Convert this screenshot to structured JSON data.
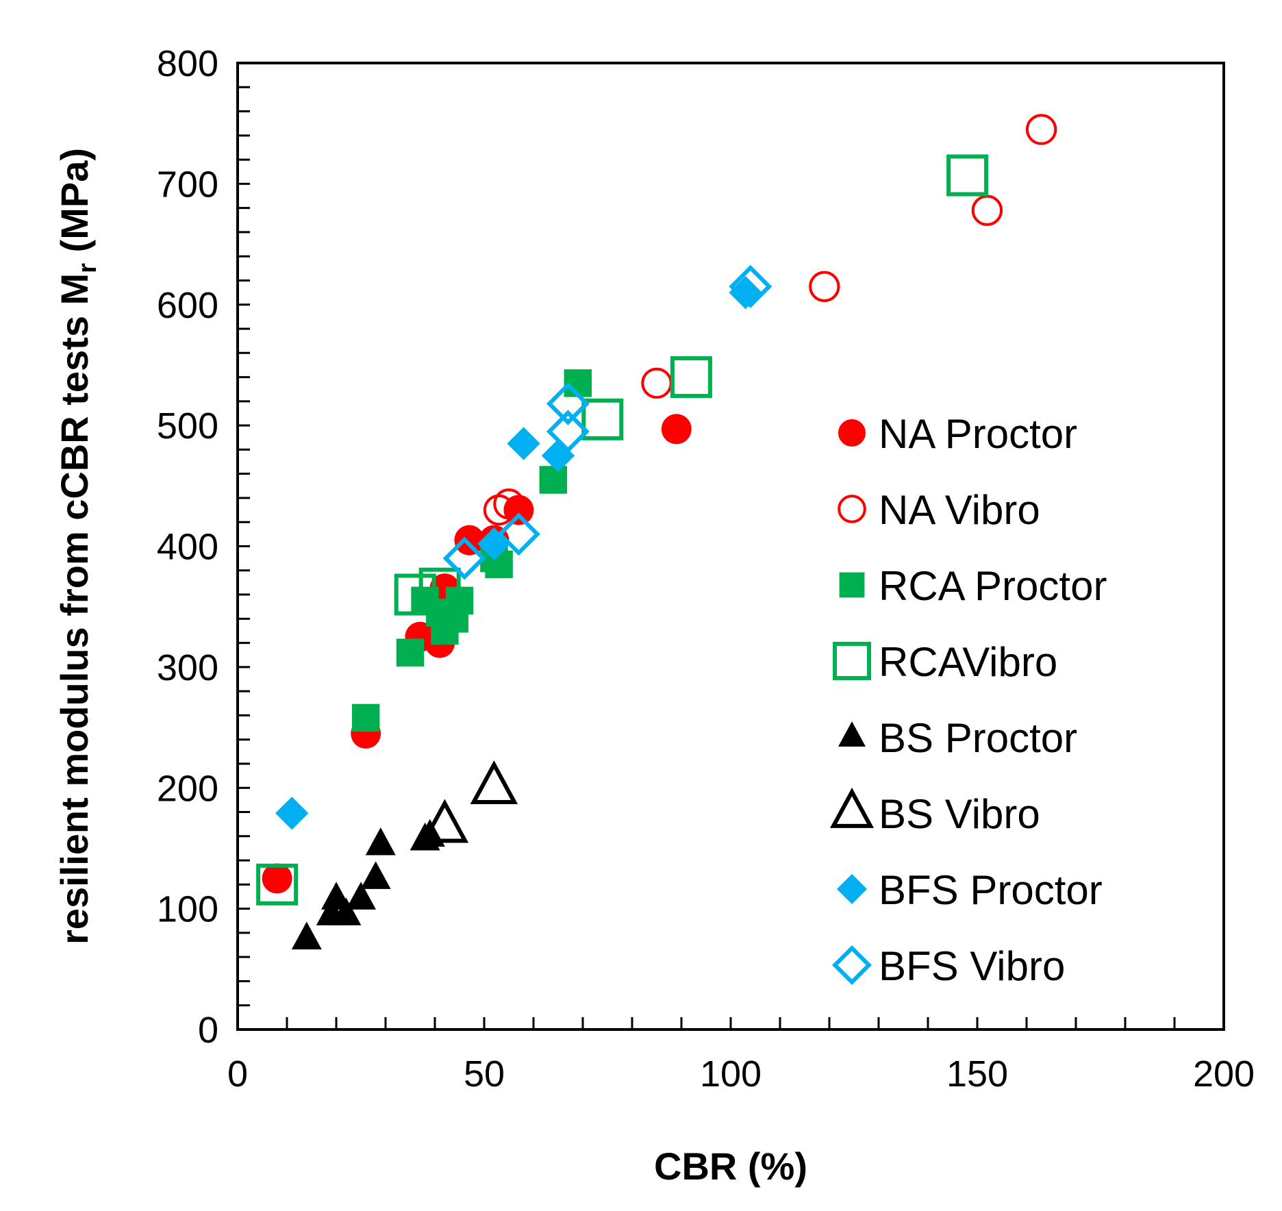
{
  "chart_data": {
    "type": "scatter",
    "title": "",
    "xlabel": "CBR (%)",
    "ylabel_main": "resilient modulus from cCBR tests M",
    "ylabel_sub": "r",
    "ylabel_unit": " (MPa)",
    "xlim": [
      0,
      200
    ],
    "ylim": [
      0,
      800
    ],
    "x_ticks": [
      0,
      50,
      100,
      150,
      200
    ],
    "y_ticks": [
      0,
      100,
      200,
      300,
      400,
      500,
      600,
      700,
      800
    ],
    "x_minor_step": 10,
    "y_minor_step": 20,
    "legend_position": "right",
    "series": [
      {
        "name": "NA Proctor",
        "marker": "circle",
        "filled": true,
        "color": "#ff0000",
        "points": [
          [
            8,
            125
          ],
          [
            26,
            245
          ],
          [
            37,
            325
          ],
          [
            41,
            320
          ],
          [
            42,
            365
          ],
          [
            47,
            405
          ],
          [
            52,
            405
          ],
          [
            57,
            430
          ],
          [
            89,
            497
          ]
        ]
      },
      {
        "name": "NA Vibro",
        "marker": "circle",
        "filled": false,
        "color": "#ff0000",
        "points": [
          [
            53,
            430
          ],
          [
            55,
            435
          ],
          [
            85,
            535
          ],
          [
            119,
            615
          ],
          [
            152,
            678
          ],
          [
            163,
            745
          ]
        ]
      },
      {
        "name": "RCA Proctor",
        "marker": "square",
        "filled": true,
        "color": "#00b050",
        "points": [
          [
            26,
            258
          ],
          [
            35,
            312
          ],
          [
            38,
            355
          ],
          [
            41,
            345
          ],
          [
            42,
            330
          ],
          [
            44,
            340
          ],
          [
            45,
            355
          ],
          [
            52,
            390
          ],
          [
            53,
            385
          ],
          [
            64,
            455
          ],
          [
            69,
            535
          ]
        ]
      },
      {
        "name": "RCAVibro",
        "marker": "square",
        "filled": false,
        "color": "#00b050",
        "points": [
          [
            8,
            120
          ],
          [
            36,
            360
          ],
          [
            41,
            365
          ],
          [
            74,
            505
          ],
          [
            92,
            540
          ],
          [
            148,
            707
          ]
        ]
      },
      {
        "name": "BS Proctor",
        "marker": "triangle",
        "filled": true,
        "color": "#000000",
        "points": [
          [
            14,
            75
          ],
          [
            19,
            95
          ],
          [
            20,
            108
          ],
          [
            22,
            95
          ],
          [
            25,
            108
          ],
          [
            28,
            125
          ],
          [
            29,
            153
          ],
          [
            38,
            157
          ],
          [
            39,
            160
          ]
        ]
      },
      {
        "name": "BS Vibro",
        "marker": "triangle",
        "filled": false,
        "color": "#000000",
        "points": [
          [
            42,
            168
          ],
          [
            52,
            200
          ]
        ]
      },
      {
        "name": "BFS Proctor",
        "marker": "diamond",
        "filled": true,
        "color": "#00b0f0",
        "points": [
          [
            11,
            179
          ],
          [
            52,
            402
          ],
          [
            58,
            485
          ],
          [
            65,
            475
          ],
          [
            103,
            610
          ]
        ]
      },
      {
        "name": "BFS Vibro",
        "marker": "diamond",
        "filled": false,
        "color": "#00b0f0",
        "points": [
          [
            46,
            390
          ],
          [
            57,
            410
          ],
          [
            67,
            495
          ],
          [
            67,
            518
          ],
          [
            104,
            615
          ]
        ]
      }
    ]
  }
}
